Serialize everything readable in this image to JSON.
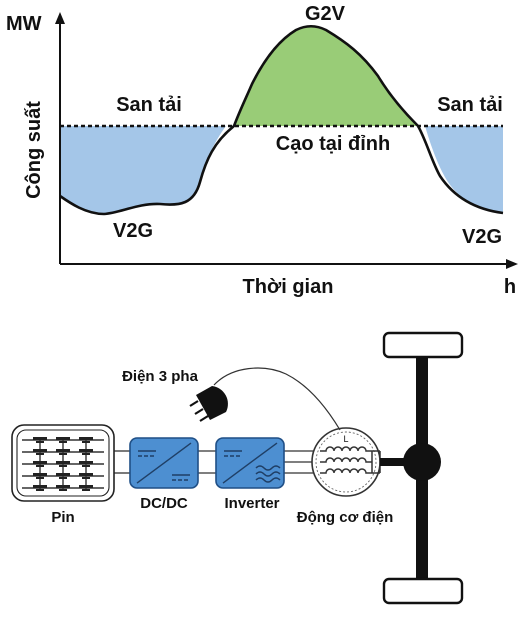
{
  "top_chart": {
    "y_unit": "MW",
    "y_label": "Công suất",
    "x_label": "Thời gian",
    "x_unit": "h",
    "labels": {
      "peak": "G2V",
      "valley_left": "V2G",
      "valley_right": "V2G",
      "fill_left": "San tải",
      "fill_right": "San tải",
      "shaving": "Cạo tại đỉnh"
    },
    "colors": {
      "charging_area": "#99cc77",
      "discharging_area": "#a4c6e8",
      "curve": "#111111"
    }
  },
  "bottom_diagram": {
    "grid_plug_label": "Điện 3 pha",
    "battery_label": "Pin",
    "dcdc_label": "DC/DC",
    "inverter_label": "Inverter",
    "motor_label": "Động cơ điện",
    "motor_winding_label": "L",
    "colors": {
      "converter_fill": "#4d8fd1",
      "converter_stroke": "#1f4f86"
    }
  }
}
